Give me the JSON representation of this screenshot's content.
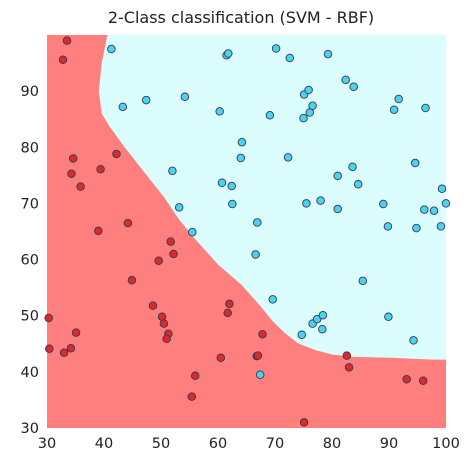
{
  "chart_data": {
    "type": "scatter",
    "title": "2-Class classification (SVM - RBF)",
    "xlabel": "",
    "ylabel": "",
    "xlim": [
      30,
      100
    ],
    "ylim": [
      30,
      100
    ],
    "xticks": [
      30,
      40,
      50,
      60,
      70,
      80,
      90,
      100
    ],
    "yticks": [
      30,
      40,
      50,
      60,
      70,
      80,
      90
    ],
    "grid": false,
    "legend": "none",
    "colors": {
      "region_class_0": "#ff7f7f",
      "region_class_1": "#dcfdfd",
      "point_class_0": "#e0282a",
      "point_class_1": "#4fd0ec",
      "point_edge": "#2b3f55"
    },
    "decision_boundary": {
      "x": [
        40.5,
        39.5,
        39,
        39.5,
        41,
        43.5,
        47,
        50.5,
        53,
        56,
        60,
        64,
        67.5,
        69.5,
        71.5,
        74,
        77,
        80,
        83.5,
        87,
        91,
        95,
        98,
        100
      ],
      "y": [
        100,
        95,
        90,
        86,
        83.5,
        80,
        75.5,
        71,
        67.2,
        63.5,
        59,
        55.5,
        51.5,
        49,
        47,
        45,
        43.8,
        43,
        42.6,
        42.5,
        42.4,
        42.2,
        42.1,
        42.1
      ]
    },
    "series": [
      {
        "class": 0,
        "x": [
          33.5,
          32.8,
          34.6,
          34.3,
          35.9,
          39.4,
          39.0,
          42.2,
          44.2,
          44.9,
          51.7,
          49.6,
          52.2,
          30.3,
          30.4,
          33.0,
          34.2,
          35.1,
          48.6,
          50.2,
          50.5,
          51.3,
          51.0,
          56.0,
          55.4,
          60.5,
          61.7,
          62.0,
          66.8,
          67.0,
          67.8,
          75.1,
          82.6,
          83.0,
          93.1,
          96.0
        ],
        "y": [
          99.0,
          95.6,
          78.0,
          75.3,
          73.0,
          76.1,
          65.1,
          78.8,
          66.5,
          56.3,
          63.2,
          59.8,
          61.0,
          49.6,
          44.1,
          43.4,
          44.2,
          47.0,
          51.8,
          49.8,
          48.6,
          46.8,
          45.9,
          39.3,
          35.6,
          42.5,
          50.5,
          52.1,
          42.8,
          42.9,
          46.7,
          31.0,
          42.9,
          40.8,
          38.7,
          38.4
        ]
      },
      {
        "class": 1,
        "x": [
          41.3,
          43.3,
          47.4,
          52.0,
          53.2,
          54.2,
          55.5,
          60.3,
          61.5,
          61.8,
          62.4,
          60.7,
          62.5,
          64.2,
          64.0,
          66.6,
          66.9,
          69.1,
          67.4,
          69.6,
          70.2,
          72.3,
          72.6,
          75.0,
          75.1,
          76.1,
          75.9,
          76.6,
          78.0,
          79.3,
          75.5,
          81.0,
          81.0,
          82.4,
          83.6,
          83.8,
          84.6,
          89.0,
          89.8,
          90.9,
          91.7,
          94.6,
          94.8,
          96.2,
          96.4,
          97.9,
          99.3,
          99.1,
          100.0,
          94.3,
          89.9,
          85.4,
          74.7,
          78.3,
          76.6,
          77.4,
          78.4
        ],
        "y": [
          97.5,
          87.2,
          88.4,
          75.8,
          69.3,
          89.0,
          64.9,
          86.4,
          96.4,
          96.7,
          73.1,
          73.7,
          69.9,
          80.9,
          78.1,
          60.9,
          66.6,
          85.7,
          39.5,
          52.9,
          97.6,
          78.2,
          95.9,
          85.2,
          89.4,
          86.2,
          90.2,
          87.4,
          70.5,
          96.6,
          70.0,
          69.0,
          74.9,
          92.0,
          76.5,
          90.8,
          73.4,
          69.9,
          65.9,
          86.7,
          88.6,
          77.2,
          65.6,
          68.9,
          87.0,
          68.7,
          72.6,
          65.9,
          70.0,
          45.6,
          49.8,
          56.2,
          46.6,
          47.6,
          48.6,
          49.4,
          50.1
        ]
      }
    ]
  }
}
